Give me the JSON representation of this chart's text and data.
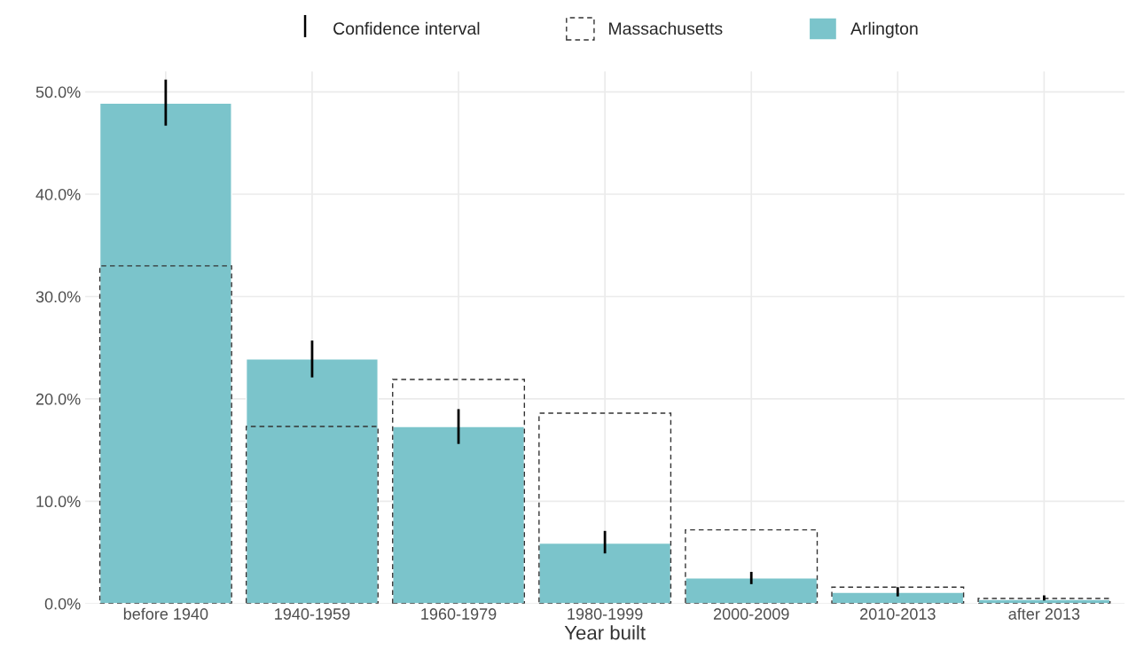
{
  "chart_data": {
    "type": "bar",
    "xlabel": "Year built",
    "categories": [
      "before 1940",
      "1940-1959",
      "1960-1979",
      "1980-1999",
      "2000-2009",
      "2010-2013",
      "after 2013"
    ],
    "series": [
      {
        "name": "Massachusetts",
        "color": "#333333",
        "line_style": "dashed",
        "values": [
          33.0,
          17.3,
          21.9,
          18.6,
          7.2,
          1.6,
          0.5
        ]
      },
      {
        "name": "Arlington",
        "color": "#7bc4cb",
        "values": [
          48.9,
          23.9,
          17.3,
          5.9,
          2.5,
          1.1,
          0.4
        ],
        "errors": [
          [
            46.7,
            51.2
          ],
          [
            22.1,
            25.7
          ],
          [
            15.6,
            19.0
          ],
          [
            4.9,
            7.1
          ],
          [
            1.9,
            3.1
          ],
          [
            0.7,
            1.6
          ],
          [
            0.3,
            0.8
          ]
        ]
      }
    ],
    "ylim": [
      0,
      52
    ],
    "yticks": [
      {
        "value": 0,
        "label": "0.0%"
      },
      {
        "value": 10,
        "label": "10.0%"
      },
      {
        "value": 20,
        "label": "20.0%"
      },
      {
        "value": 30,
        "label": "30.0%"
      },
      {
        "value": 40,
        "label": "40.0%"
      },
      {
        "value": 50,
        "label": "50.0%"
      }
    ],
    "annotations": [
      "Confidence interval"
    ],
    "grid": true,
    "legend": "top"
  }
}
